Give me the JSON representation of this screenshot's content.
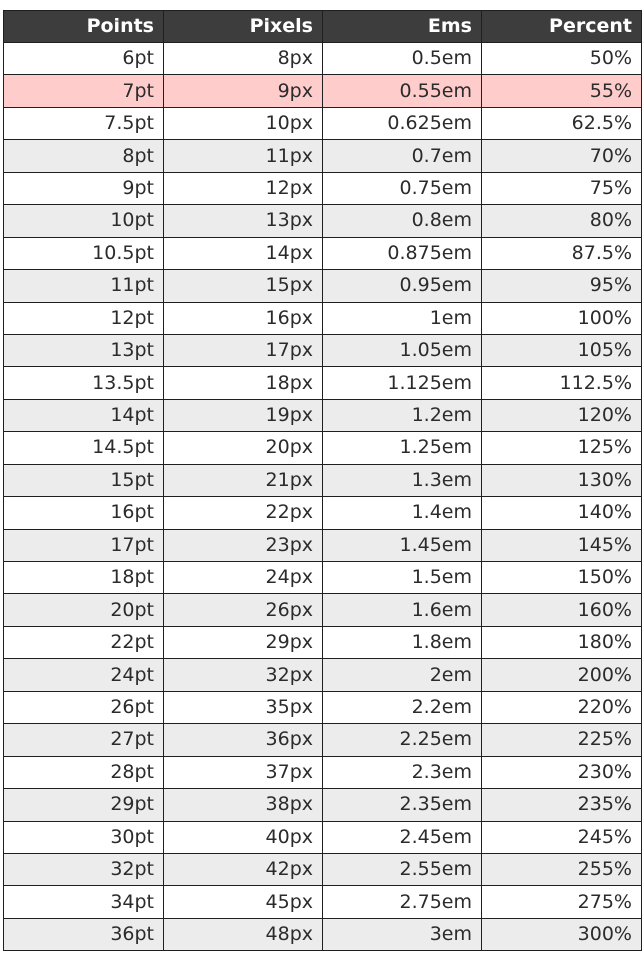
{
  "table": {
    "headers": [
      "Points",
      "Pixels",
      "Ems",
      "Percent"
    ],
    "highlight_row_color": "#ffcccc",
    "header_bg_color": "#3d3d3d",
    "alt_row_color": "#ececec",
    "rows": [
      {
        "points": "6pt",
        "pixels": "8px",
        "ems": "0.5em",
        "percent": "50%",
        "style": "plain"
      },
      {
        "points": "7pt",
        "pixels": "9px",
        "ems": "0.55em",
        "percent": "55%",
        "style": "highlight"
      },
      {
        "points": "7.5pt",
        "pixels": "10px",
        "ems": "0.625em",
        "percent": "62.5%",
        "style": "plain"
      },
      {
        "points": "8pt",
        "pixels": "11px",
        "ems": "0.7em",
        "percent": "70%",
        "style": "alt"
      },
      {
        "points": "9pt",
        "pixels": "12px",
        "ems": "0.75em",
        "percent": "75%",
        "style": "plain"
      },
      {
        "points": "10pt",
        "pixels": "13px",
        "ems": "0.8em",
        "percent": "80%",
        "style": "alt"
      },
      {
        "points": "10.5pt",
        "pixels": "14px",
        "ems": "0.875em",
        "percent": "87.5%",
        "style": "plain"
      },
      {
        "points": "11pt",
        "pixels": "15px",
        "ems": "0.95em",
        "percent": "95%",
        "style": "alt"
      },
      {
        "points": "12pt",
        "pixels": "16px",
        "ems": "1em",
        "percent": "100%",
        "style": "plain"
      },
      {
        "points": "13pt",
        "pixels": "17px",
        "ems": "1.05em",
        "percent": "105%",
        "style": "alt"
      },
      {
        "points": "13.5pt",
        "pixels": "18px",
        "ems": "1.125em",
        "percent": "112.5%",
        "style": "plain"
      },
      {
        "points": "14pt",
        "pixels": "19px",
        "ems": "1.2em",
        "percent": "120%",
        "style": "alt"
      },
      {
        "points": "14.5pt",
        "pixels": "20px",
        "ems": "1.25em",
        "percent": "125%",
        "style": "plain"
      },
      {
        "points": "15pt",
        "pixels": "21px",
        "ems": "1.3em",
        "percent": "130%",
        "style": "alt"
      },
      {
        "points": "16pt",
        "pixels": "22px",
        "ems": "1.4em",
        "percent": "140%",
        "style": "plain"
      },
      {
        "points": "17pt",
        "pixels": "23px",
        "ems": "1.45em",
        "percent": "145%",
        "style": "alt"
      },
      {
        "points": "18pt",
        "pixels": "24px",
        "ems": "1.5em",
        "percent": "150%",
        "style": "plain"
      },
      {
        "points": "20pt",
        "pixels": "26px",
        "ems": "1.6em",
        "percent": "160%",
        "style": "alt"
      },
      {
        "points": "22pt",
        "pixels": "29px",
        "ems": "1.8em",
        "percent": "180%",
        "style": "plain"
      },
      {
        "points": "24pt",
        "pixels": "32px",
        "ems": "2em",
        "percent": "200%",
        "style": "alt"
      },
      {
        "points": "26pt",
        "pixels": "35px",
        "ems": "2.2em",
        "percent": "220%",
        "style": "plain"
      },
      {
        "points": "27pt",
        "pixels": "36px",
        "ems": "2.25em",
        "percent": "225%",
        "style": "alt"
      },
      {
        "points": "28pt",
        "pixels": "37px",
        "ems": "2.3em",
        "percent": "230%",
        "style": "plain"
      },
      {
        "points": "29pt",
        "pixels": "38px",
        "ems": "2.35em",
        "percent": "235%",
        "style": "alt"
      },
      {
        "points": "30pt",
        "pixels": "40px",
        "ems": "2.45em",
        "percent": "245%",
        "style": "plain"
      },
      {
        "points": "32pt",
        "pixels": "42px",
        "ems": "2.55em",
        "percent": "255%",
        "style": "alt"
      },
      {
        "points": "34pt",
        "pixels": "45px",
        "ems": "2.75em",
        "percent": "275%",
        "style": "plain"
      },
      {
        "points": "36pt",
        "pixels": "48px",
        "ems": "3em",
        "percent": "300%",
        "style": "alt"
      }
    ]
  }
}
